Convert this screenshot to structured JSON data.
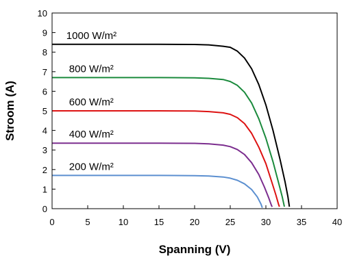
{
  "chart_data": {
    "type": "line",
    "title": "",
    "xlabel": "Spanning (V)",
    "ylabel": "Stroom (A)",
    "xlim": [
      0,
      40
    ],
    "ylim": [
      0,
      10
    ],
    "xticks": [
      "0",
      "5",
      "10",
      "15",
      "20",
      "25",
      "30",
      "35",
      "40"
    ],
    "yticks": [
      "0",
      "1",
      "2",
      "3",
      "4",
      "5",
      "6",
      "7",
      "8",
      "9",
      "10"
    ],
    "grid": false,
    "series": [
      {
        "name": "1000 W/m²",
        "color": "#000000",
        "points": [
          [
            0,
            8.4
          ],
          [
            5,
            8.4
          ],
          [
            10,
            8.4
          ],
          [
            15,
            8.4
          ],
          [
            20,
            8.39
          ],
          [
            22,
            8.37
          ],
          [
            24,
            8.3
          ],
          [
            25,
            8.25
          ],
          [
            26,
            8.05
          ],
          [
            27,
            7.7
          ],
          [
            28,
            7.15
          ],
          [
            29,
            6.35
          ],
          [
            30,
            5.3
          ],
          [
            31,
            4.0
          ],
          [
            32,
            2.5
          ],
          [
            32.7,
            1.35
          ],
          [
            33.1,
            0.6
          ],
          [
            33.3,
            0.1
          ]
        ]
      },
      {
        "name": "800 W/m²",
        "color": "#1a8a3c",
        "points": [
          [
            0,
            6.7
          ],
          [
            5,
            6.7
          ],
          [
            10,
            6.7
          ],
          [
            15,
            6.7
          ],
          [
            20,
            6.69
          ],
          [
            22,
            6.66
          ],
          [
            24,
            6.6
          ],
          [
            25,
            6.5
          ],
          [
            26,
            6.3
          ],
          [
            27,
            5.95
          ],
          [
            28,
            5.4
          ],
          [
            29,
            4.6
          ],
          [
            30,
            3.6
          ],
          [
            31,
            2.4
          ],
          [
            31.8,
            1.3
          ],
          [
            32.3,
            0.6
          ],
          [
            32.6,
            0.1
          ]
        ]
      },
      {
        "name": "600 W/m²",
        "color": "#dd1111",
        "points": [
          [
            0,
            5.0
          ],
          [
            5,
            5.0
          ],
          [
            10,
            5.0
          ],
          [
            15,
            5.0
          ],
          [
            20,
            4.99
          ],
          [
            22,
            4.96
          ],
          [
            24,
            4.9
          ],
          [
            25,
            4.82
          ],
          [
            26,
            4.65
          ],
          [
            27,
            4.35
          ],
          [
            28,
            3.85
          ],
          [
            29,
            3.15
          ],
          [
            30,
            2.3
          ],
          [
            30.8,
            1.4
          ],
          [
            31.4,
            0.7
          ],
          [
            31.8,
            0.2
          ],
          [
            31.9,
            0.1
          ]
        ]
      },
      {
        "name": "400 W/m²",
        "color": "#7b2d8e",
        "points": [
          [
            0,
            3.35
          ],
          [
            5,
            3.35
          ],
          [
            10,
            3.35
          ],
          [
            15,
            3.35
          ],
          [
            20,
            3.34
          ],
          [
            22,
            3.31
          ],
          [
            24,
            3.25
          ],
          [
            25,
            3.17
          ],
          [
            26,
            3.02
          ],
          [
            27,
            2.77
          ],
          [
            28,
            2.35
          ],
          [
            29,
            1.75
          ],
          [
            29.8,
            1.1
          ],
          [
            30.4,
            0.55
          ],
          [
            30.8,
            0.15
          ],
          [
            30.9,
            0.1
          ]
        ]
      },
      {
        "name": "200 W/m²",
        "color": "#5b8fd0",
        "points": [
          [
            0,
            1.7
          ],
          [
            5,
            1.7
          ],
          [
            10,
            1.7
          ],
          [
            15,
            1.7
          ],
          [
            20,
            1.69
          ],
          [
            22,
            1.67
          ],
          [
            24,
            1.62
          ],
          [
            25,
            1.56
          ],
          [
            26,
            1.45
          ],
          [
            27,
            1.27
          ],
          [
            28,
            0.98
          ],
          [
            28.8,
            0.6
          ],
          [
            29.3,
            0.25
          ],
          [
            29.5,
            0.05
          ]
        ]
      }
    ]
  }
}
